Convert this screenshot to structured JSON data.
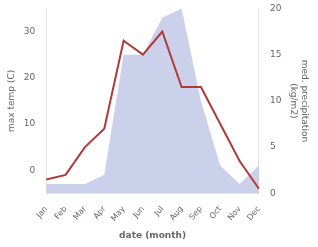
{
  "chart_data": {
    "type": "line",
    "categories": [
      "Jan",
      "Feb",
      "Mar",
      "Apr",
      "May",
      "Jun",
      "Jul",
      "Aug",
      "Sep",
      "Oct",
      "Nov",
      "Dec"
    ],
    "series": [
      {
        "type": "area",
        "color": "#b0b8e0",
        "axis": "y2",
        "values": [
          1,
          1,
          1,
          2,
          15,
          15,
          19,
          20,
          10,
          3,
          1,
          3
        ]
      },
      {
        "type": "line",
        "color": "#b03a3a",
        "values": [
          -2,
          -1,
          5,
          9,
          28,
          25,
          30,
          18,
          18,
          10,
          2,
          -4
        ]
      }
    ],
    "xlabel": "date (month)",
    "ylabel": "max temp (C)",
    "y2label": "med. precipitation\n(kg/m2)",
    "ylim": [
      -5,
      35
    ],
    "yticks": [
      0,
      10,
      20,
      30
    ],
    "y2lim": [
      0,
      20
    ],
    "y2ticks": [
      0,
      5,
      10,
      15,
      20
    ],
    "grid": false
  }
}
